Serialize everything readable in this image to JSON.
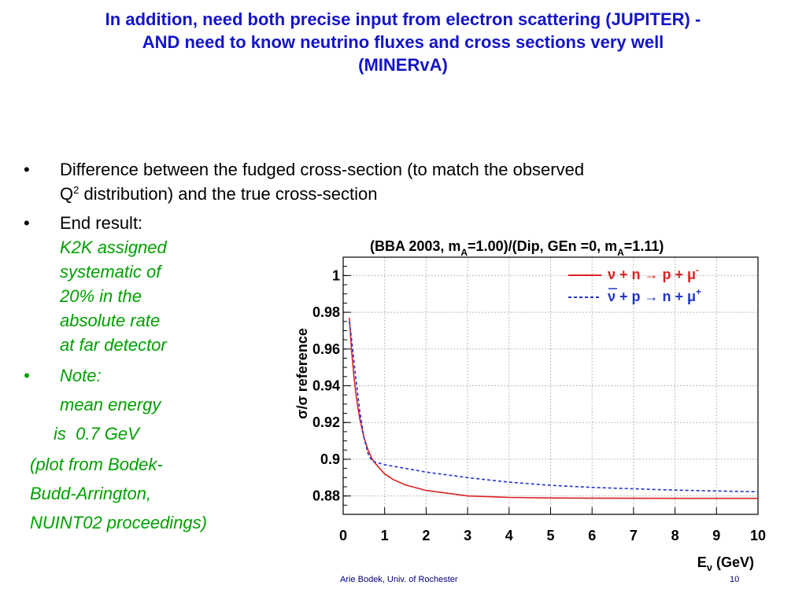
{
  "slide": {
    "title_lines": [
      "In addition, need both precise input from electron scattering (JUPITER) -",
      "AND need to know neutrino fluxes and cross sections very well",
      "(MINERvA)"
    ],
    "bullet1": {
      "marker": "•",
      "line1": "Difference between the fudged cross-section (to match the observed",
      "line2_pre": "Q",
      "line2_sup": "2",
      "line2_post": " distribution) and the true cross-section"
    },
    "bullet2": {
      "marker": "•",
      "heading": "End result:",
      "lines": [
        "K2K assigned",
        "systematic of",
        "20% in the",
        "absolute rate",
        "at far detector"
      ]
    },
    "bullet3": {
      "marker": "•",
      "heading": "Note:",
      "mean_energy": "mean energy",
      "is_line": "is  0.7 GeV",
      "plot_from": [
        "(plot from Bodek-",
        "Budd-Arrington,",
        "NUINT02 proceedings)"
      ]
    },
    "footer_author": "Arie Bodek,  Univ. of Rochester",
    "footer_page": "10"
  },
  "chart_data": {
    "type": "line",
    "title": "(BBA 2003, m A=1.00)/(Dip, GEn =0, m A=1.11)",
    "title_parts": [
      "(BBA 2003, m",
      "A",
      "=1.00)/(Dip, GEn =0, m",
      "A",
      "=1.11)"
    ],
    "xlabel": "Eν (GeV)",
    "xlabel_parts": [
      "E",
      "ν",
      " (GeV)"
    ],
    "ylabel": "σ/σ reference",
    "xlim": [
      0,
      10
    ],
    "ylim": [
      0.87,
      1.01
    ],
    "x_ticks": [
      0,
      1,
      2,
      3,
      4,
      5,
      6,
      7,
      8,
      9,
      10
    ],
    "y_ticks": [
      0.88,
      0.9,
      0.92,
      0.94,
      0.96,
      0.98,
      1
    ],
    "y_tick_labels": [
      "0.88",
      "0.9",
      "0.92",
      "0.94",
      "0.96",
      "0.98",
      "1"
    ],
    "grid": true,
    "legend_position": "top-right",
    "series": [
      {
        "name": "ν + n → p + μ-",
        "legend_label": "ν + n → p + μ",
        "legend_sup": "-",
        "color": "#dd2222",
        "style": "solid",
        "x": [
          0.15,
          0.2,
          0.25,
          0.3,
          0.35,
          0.4,
          0.5,
          0.6,
          0.7,
          0.8,
          1.0,
          1.2,
          1.5,
          2.0,
          2.5,
          3.0,
          4.0,
          5.0,
          6.0,
          8.0,
          10.0
        ],
        "y": [
          0.977,
          0.96,
          0.947,
          0.937,
          0.929,
          0.922,
          0.912,
          0.905,
          0.9,
          0.897,
          0.892,
          0.889,
          0.886,
          0.883,
          0.8815,
          0.88,
          0.8792,
          0.8789,
          0.8788,
          0.8787,
          0.8787
        ]
      },
      {
        "name": "ν̅ + p → n + μ+",
        "legend_label": "ν + p → n + μ",
        "legend_sup": "+",
        "legend_bar_over_nu": true,
        "color": "#2233cc",
        "style": "dashed",
        "x": [
          0.15,
          0.2,
          0.3,
          0.4,
          0.5,
          0.6,
          0.7,
          1.0,
          1.5,
          2.0,
          3.0,
          4.0,
          5.0,
          6.0,
          7.0,
          8.0,
          9.0,
          10.0
        ],
        "y": [
          0.975,
          0.966,
          0.945,
          0.926,
          0.912,
          0.903,
          0.899,
          0.897,
          0.895,
          0.893,
          0.89,
          0.8875,
          0.8858,
          0.8847,
          0.8839,
          0.8832,
          0.8827,
          0.8823
        ]
      }
    ]
  }
}
